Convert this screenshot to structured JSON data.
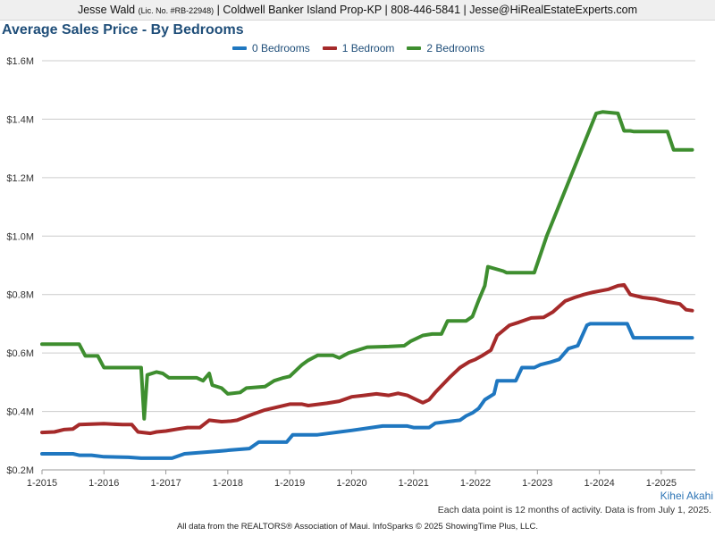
{
  "header": {
    "agent_name": "Jesse Wald",
    "license": "(Lic. No. #RB-22948)",
    "rest": "| Coldwell Banker Island Prop-KP | 808-446-5841 | Jesse@HiRealEstateExperts.com"
  },
  "region": "Kihei Akahi",
  "footnote": "Each data point is 12 months of activity. Data is from July 1, 2025.",
  "copyright": "All data from the REALTORS® Association of Maui. InfoSparks © 2025 ShowingTime Plus, LLC.",
  "colors": {
    "series0": "#1f77c0",
    "series1": "#a52a2a",
    "series2": "#3e8e2f",
    "grid": "#cccccc",
    "title": "#1f4e79"
  },
  "chart_data": {
    "type": "line",
    "title": "Average Sales Price - By Bedrooms",
    "xlabel": "",
    "ylabel": "",
    "xlim": [
      2015.0,
      2025.55
    ],
    "ylim": [
      200000,
      1600000
    ],
    "x_ticks": [
      2015,
      2016,
      2017,
      2018,
      2019,
      2020,
      2021,
      2022,
      2023,
      2024,
      2025
    ],
    "x_tick_labels": [
      "1-2015",
      "1-2016",
      "1-2017",
      "1-2018",
      "1-2019",
      "1-2020",
      "1-2021",
      "1-2022",
      "1-2023",
      "1-2024",
      "1-2025"
    ],
    "y_ticks": [
      200000,
      400000,
      600000,
      800000,
      1000000,
      1200000,
      1400000,
      1600000
    ],
    "y_tick_labels": [
      "$0.2M",
      "$0.4M",
      "$0.6M",
      "$0.8M",
      "$1.0M",
      "$1.2M",
      "$1.4M",
      "$1.6M"
    ],
    "grid": "horizontal",
    "legend_position": "top",
    "series": [
      {
        "name": "0 Bedrooms",
        "x": [
          2015.0,
          2015.5,
          2015.6,
          2015.8,
          2016.0,
          2016.4,
          2016.6,
          2017.0,
          2017.1,
          2017.3,
          2017.9,
          2018.05,
          2018.35,
          2018.5,
          2018.95,
          2019.05,
          2019.45,
          2020.0,
          2020.5,
          2020.9,
          2021.0,
          2021.25,
          2021.35,
          2021.55,
          2021.75,
          2021.85,
          2021.95,
          2022.05,
          2022.15,
          2022.3,
          2022.35,
          2022.65,
          2022.75,
          2022.95,
          2023.05,
          2023.2,
          2023.35,
          2023.5,
          2023.65,
          2023.8,
          2023.85,
          2024.45,
          2024.55,
          2025.5
        ],
        "y": [
          255000,
          255000,
          250000,
          250000,
          245000,
          243000,
          240000,
          240000,
          240000,
          255000,
          265000,
          268000,
          273000,
          295000,
          295000,
          320000,
          320000,
          335000,
          350000,
          350000,
          345000,
          345000,
          360000,
          365000,
          370000,
          385000,
          395000,
          410000,
          440000,
          460000,
          505000,
          505000,
          550000,
          550000,
          560000,
          568000,
          578000,
          615000,
          625000,
          695000,
          700000,
          700000,
          652000,
          652000
        ]
      },
      {
        "name": "1 Bedroom",
        "x": [
          2015.0,
          2015.2,
          2015.35,
          2015.5,
          2015.6,
          2016.0,
          2016.3,
          2016.45,
          2016.55,
          2016.75,
          2016.85,
          2017.0,
          2017.2,
          2017.35,
          2017.55,
          2017.7,
          2017.9,
          2018.05,
          2018.15,
          2018.4,
          2018.6,
          2018.8,
          2019.0,
          2019.2,
          2019.3,
          2019.6,
          2019.8,
          2020.0,
          2020.2,
          2020.4,
          2020.6,
          2020.75,
          2020.9,
          2021.0,
          2021.15,
          2021.25,
          2021.35,
          2021.6,
          2021.75,
          2021.9,
          2022.0,
          2022.1,
          2022.25,
          2022.35,
          2022.55,
          2022.7,
          2022.9,
          2023.1,
          2023.25,
          2023.45,
          2023.6,
          2023.75,
          2023.9,
          2024.0,
          2024.15,
          2024.3,
          2024.4,
          2024.5,
          2024.7,
          2024.9,
          2025.1,
          2025.3,
          2025.4,
          2025.5
        ],
        "y": [
          328000,
          330000,
          338000,
          340000,
          355000,
          358000,
          355000,
          355000,
          330000,
          325000,
          330000,
          333000,
          340000,
          345000,
          345000,
          370000,
          365000,
          367000,
          370000,
          390000,
          405000,
          415000,
          425000,
          425000,
          420000,
          428000,
          435000,
          450000,
          455000,
          460000,
          455000,
          462000,
          455000,
          445000,
          430000,
          440000,
          465000,
          520000,
          550000,
          570000,
          578000,
          590000,
          610000,
          660000,
          695000,
          705000,
          720000,
          722000,
          740000,
          778000,
          790000,
          800000,
          808000,
          812000,
          818000,
          830000,
          833000,
          800000,
          790000,
          785000,
          775000,
          768000,
          748000,
          745000
        ]
      },
      {
        "name": "2 Bedrooms",
        "x": [
          2015.0,
          2015.6,
          2015.7,
          2015.9,
          2016.0,
          2016.5,
          2016.6,
          2016.65,
          2016.7,
          2016.85,
          2016.95,
          2017.05,
          2017.5,
          2017.6,
          2017.7,
          2017.75,
          2017.9,
          2018.0,
          2018.2,
          2018.3,
          2018.6,
          2018.75,
          2018.9,
          2019.0,
          2019.2,
          2019.3,
          2019.45,
          2019.7,
          2019.8,
          2019.95,
          2020.1,
          2020.25,
          2020.6,
          2020.85,
          2020.95,
          2021.05,
          2021.15,
          2021.3,
          2021.45,
          2021.55,
          2021.85,
          2021.95,
          2022.05,
          2022.15,
          2022.2,
          2022.45,
          2022.5,
          2022.95,
          2023.15,
          2023.95,
          2024.05,
          2024.3,
          2024.4,
          2024.5,
          2024.55,
          2024.8,
          2025.1,
          2025.2,
          2025.3,
          2025.5
        ],
        "y": [
          630000,
          630000,
          590000,
          590000,
          550000,
          550000,
          550000,
          375000,
          525000,
          535000,
          530000,
          515000,
          515000,
          505000,
          530000,
          490000,
          480000,
          460000,
          465000,
          480000,
          485000,
          505000,
          515000,
          520000,
          560000,
          575000,
          592000,
          592000,
          583000,
          600000,
          610000,
          620000,
          622000,
          625000,
          640000,
          650000,
          660000,
          665000,
          665000,
          710000,
          710000,
          725000,
          780000,
          830000,
          895000,
          880000,
          875000,
          875000,
          1000000,
          1420000,
          1425000,
          1420000,
          1360000,
          1360000,
          1358000,
          1358000,
          1358000,
          1295000,
          1295000,
          1295000
        ]
      }
    ]
  }
}
